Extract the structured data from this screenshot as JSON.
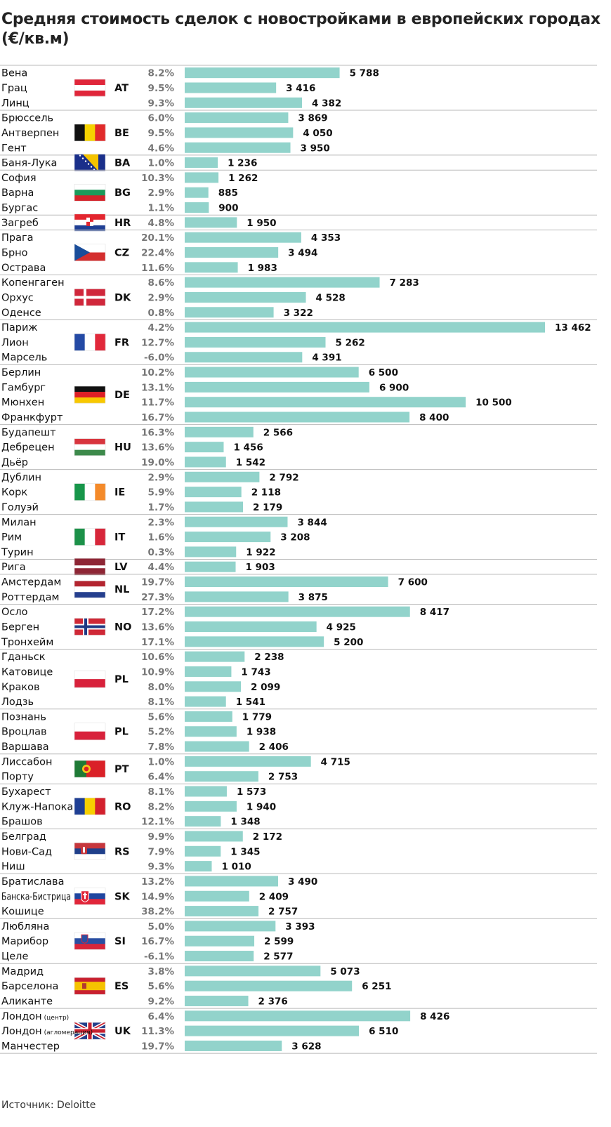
{
  "title": "Средняя стоимость сделок с новостройками в европейских городах (€/кв.м)",
  "source": "Источник: Deloitte",
  "colors": {
    "bar": "#92d3cb",
    "separator": "#b9b9b9",
    "pct": "#777777"
  },
  "chart_data": {
    "type": "bar",
    "orientation": "horizontal",
    "title": "Средняя стоимость сделок с новостройками в европейских городах (€/кв.м)",
    "xlim": [
      0,
      13462
    ],
    "groups": [
      {
        "code": "AT",
        "flag": "flag-austria",
        "cities": [
          {
            "name": "Вена",
            "change": "8.2%",
            "value": 5788,
            "label": "5 788"
          },
          {
            "name": "Грац",
            "change": "9.5%",
            "value": 3416,
            "label": "3 416"
          },
          {
            "name": "Линц",
            "change": "9.3%",
            "value": 4382,
            "label": "4 382"
          }
        ]
      },
      {
        "code": "BE",
        "flag": "flag-belgium",
        "cities": [
          {
            "name": "Брюссель",
            "change": "6.0%",
            "value": 3869,
            "label": "3 869"
          },
          {
            "name": "Антверпен",
            "change": "9.5%",
            "value": 4050,
            "label": "4 050"
          },
          {
            "name": "Гент",
            "change": "4.6%",
            "value": 3950,
            "label": "3 950"
          }
        ]
      },
      {
        "code": "BA",
        "flag": "flag-bosnia",
        "cities": [
          {
            "name": "Баня-Лука",
            "change": "1.0%",
            "value": 1236,
            "label": "1 236"
          }
        ]
      },
      {
        "code": "BG",
        "flag": "flag-bulgaria",
        "cities": [
          {
            "name": "София",
            "change": "10.3%",
            "value": 1262,
            "label": "1 262"
          },
          {
            "name": "Варна",
            "change": "2.9%",
            "value": 885,
            "label": "885"
          },
          {
            "name": "Бургас",
            "change": "1.1%",
            "value": 900,
            "label": "900"
          }
        ]
      },
      {
        "code": "HR",
        "flag": "flag-croatia",
        "cities": [
          {
            "name": "Загреб",
            "change": "4.8%",
            "value": 1950,
            "label": "1 950"
          }
        ]
      },
      {
        "code": "CZ",
        "flag": "flag-czech",
        "cities": [
          {
            "name": "Прага",
            "change": "20.1%",
            "value": 4353,
            "label": "4 353"
          },
          {
            "name": "Брно",
            "change": "22.4%",
            "value": 3494,
            "label": "3 494"
          },
          {
            "name": "Острава",
            "change": "11.6%",
            "value": 1983,
            "label": "1 983"
          }
        ]
      },
      {
        "code": "DK",
        "flag": "flag-denmark",
        "cities": [
          {
            "name": "Копенгаген",
            "change": "8.6%",
            "value": 7283,
            "label": "7 283"
          },
          {
            "name": "Орхус",
            "change": "2.9%",
            "value": 4528,
            "label": "4 528"
          },
          {
            "name": "Оденсе",
            "change": "0.8%",
            "value": 3322,
            "label": "3 322"
          }
        ]
      },
      {
        "code": "FR",
        "flag": "flag-france",
        "cities": [
          {
            "name": "Париж",
            "change": "4.2%",
            "value": 13462,
            "label": "13 462"
          },
          {
            "name": "Лион",
            "change": "12.7%",
            "value": 5262,
            "label": "5 262"
          },
          {
            "name": "Марсель",
            "change": "-6.0%",
            "value": 4391,
            "label": "4 391"
          }
        ]
      },
      {
        "code": "DE",
        "flag": "flag-germany",
        "cities": [
          {
            "name": "Берлин",
            "change": "10.2%",
            "value": 6500,
            "label": "6 500"
          },
          {
            "name": "Гамбург",
            "change": "13.1%",
            "value": 6900,
            "label": "6 900"
          },
          {
            "name": "Мюнхен",
            "change": "11.7%",
            "value": 10500,
            "label": "10 500"
          },
          {
            "name": "Франкфурт",
            "change": "16.7%",
            "value": 8400,
            "label": "8 400"
          }
        ]
      },
      {
        "code": "HU",
        "flag": "flag-hungary",
        "cities": [
          {
            "name": "Будапешт",
            "change": "16.3%",
            "value": 2566,
            "label": "2 566"
          },
          {
            "name": "Дебрецен",
            "change": "13.6%",
            "value": 1456,
            "label": "1 456"
          },
          {
            "name": "Дьёр",
            "change": "19.0%",
            "value": 1542,
            "label": "1 542"
          }
        ]
      },
      {
        "code": "IE",
        "flag": "flag-ireland",
        "cities": [
          {
            "name": "Дублин",
            "change": "2.9%",
            "value": 2792,
            "label": "2 792"
          },
          {
            "name": "Корк",
            "change": "5.9%",
            "value": 2118,
            "label": "2 118"
          },
          {
            "name": "Голуэй",
            "change": "1.7%",
            "value": 2179,
            "label": "2 179"
          }
        ]
      },
      {
        "code": "IT",
        "flag": "flag-italy",
        "cities": [
          {
            "name": "Милан",
            "change": "2.3%",
            "value": 3844,
            "label": "3 844"
          },
          {
            "name": "Рим",
            "change": "1.6%",
            "value": 3208,
            "label": "3 208"
          },
          {
            "name": "Турин",
            "change": "0.3%",
            "value": 1922,
            "label": "1 922"
          }
        ]
      },
      {
        "code": "LV",
        "flag": "flag-latvia",
        "cities": [
          {
            "name": "Рига",
            "change": "4.4%",
            "value": 1903,
            "label": "1 903"
          }
        ]
      },
      {
        "code": "NL",
        "flag": "flag-netherlands",
        "cities": [
          {
            "name": "Амстердам",
            "change": "19.7%",
            "value": 7600,
            "label": "7 600"
          },
          {
            "name": "Роттердам",
            "change": "27.3%",
            "value": 3875,
            "label": "3 875"
          }
        ]
      },
      {
        "code": "NO",
        "flag": "flag-norway",
        "cities": [
          {
            "name": "Осло",
            "change": "17.2%",
            "value": 8417,
            "label": "8 417"
          },
          {
            "name": "Берген",
            "change": "13.6%",
            "value": 4925,
            "label": "4 925"
          },
          {
            "name": "Тронхейм",
            "change": "17.1%",
            "value": 5200,
            "label": "5 200"
          }
        ]
      },
      {
        "code": "PL",
        "flag": "flag-poland",
        "cities": [
          {
            "name": "Гданьск",
            "change": "10.6%",
            "value": 2238,
            "label": "2 238"
          },
          {
            "name": "Катовице",
            "change": "10.9%",
            "value": 1743,
            "label": "1 743"
          },
          {
            "name": "Краков",
            "change": "8.0%",
            "value": 2099,
            "label": "2 099"
          },
          {
            "name": "Лодзь",
            "change": "8.1%",
            "value": 1541,
            "label": "1 541"
          }
        ]
      },
      {
        "code": "PL",
        "flag": "flag-poland",
        "cities": [
          {
            "name": "Познань",
            "change": "5.6%",
            "value": 1779,
            "label": "1 779"
          },
          {
            "name": "Вроцлав",
            "change": "5.2%",
            "value": 1938,
            "label": "1 938"
          },
          {
            "name": "Варшава",
            "change": "7.8%",
            "value": 2406,
            "label": "2 406"
          }
        ]
      },
      {
        "code": "PT",
        "flag": "flag-portugal",
        "cities": [
          {
            "name": "Лиссабон",
            "change": "1.0%",
            "value": 4715,
            "label": "4 715"
          },
          {
            "name": "Порту",
            "change": "6.4%",
            "value": 2753,
            "label": "2 753"
          }
        ]
      },
      {
        "code": "RO",
        "flag": "flag-romania",
        "cities": [
          {
            "name": "Бухарест",
            "change": "8.1%",
            "value": 1573,
            "label": "1 573"
          },
          {
            "name": "Клуж-Напока",
            "change": "8.2%",
            "value": 1940,
            "label": "1 940"
          },
          {
            "name": "Брашов",
            "change": "12.1%",
            "value": 1348,
            "label": "1 348"
          }
        ]
      },
      {
        "code": "RS",
        "flag": "flag-serbia",
        "cities": [
          {
            "name": "Белград",
            "change": "9.9%",
            "value": 2172,
            "label": "2 172"
          },
          {
            "name": "Нови-Сад",
            "change": "7.9%",
            "value": 1345,
            "label": "1 345"
          },
          {
            "name": "Ниш",
            "change": "9.3%",
            "value": 1010,
            "label": "1 010"
          }
        ]
      },
      {
        "code": "SK",
        "flag": "flag-slovakia",
        "cities": [
          {
            "name": "Братислава",
            "change": "13.2%",
            "value": 3490,
            "label": "3 490"
          },
          {
            "name": "Банска-Бистрица",
            "change": "14.9%",
            "value": 2409,
            "label": "2 409",
            "narrow": true
          },
          {
            "name": "Кошице",
            "change": "38.2%",
            "value": 2757,
            "label": "2 757"
          }
        ]
      },
      {
        "code": "SI",
        "flag": "flag-slovenia",
        "cities": [
          {
            "name": "Любляна",
            "change": "5.0%",
            "value": 3393,
            "label": "3 393"
          },
          {
            "name": "Марибор",
            "change": "16.7%",
            "value": 2599,
            "label": "2 599"
          },
          {
            "name": "Целе",
            "change": "-6.1%",
            "value": 2577,
            "label": "2 577"
          }
        ]
      },
      {
        "code": "ES",
        "flag": "flag-spain",
        "cities": [
          {
            "name": "Мадрид",
            "change": "3.8%",
            "value": 5073,
            "label": "5 073"
          },
          {
            "name": "Барселона",
            "change": "5.6%",
            "value": 6251,
            "label": "6 251"
          },
          {
            "name": "Аликанте",
            "change": "9.2%",
            "value": 2376,
            "label": "2 376"
          }
        ]
      },
      {
        "code": "UK",
        "flag": "flag-uk",
        "cities": [
          {
            "name": "Лондон",
            "note": "(центр)",
            "change": "6.4%",
            "value": 8426,
            "label": "8 426"
          },
          {
            "name": "Лондон",
            "note": "(агломерация)",
            "change": "11.3%",
            "value": 6510,
            "label": "6 510"
          },
          {
            "name": "Манчестер",
            "change": "19.7%",
            "value": 3628,
            "label": "3 628"
          }
        ]
      }
    ]
  }
}
